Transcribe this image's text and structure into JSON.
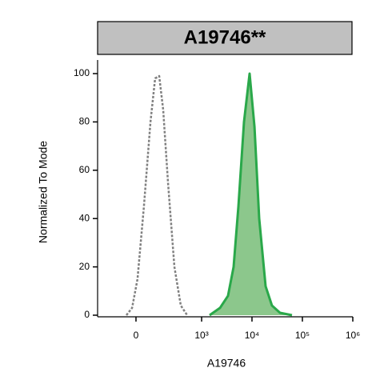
{
  "chart_data": {
    "type": "line",
    "title": "A19746**",
    "xlabel": "A19746",
    "ylabel": "Normalized To Mode",
    "xscale": "biexponential",
    "xlim": [
      -280,
      1000000
    ],
    "xticks": [
      0,
      {
        "value": 1000,
        "label": "10³"
      },
      {
        "value": 10000,
        "label": "10⁴"
      },
      {
        "value": 100000,
        "label": "10⁵"
      },
      {
        "value": 1000000,
        "label": "10⁶"
      }
    ],
    "ylim": [
      0,
      100
    ],
    "yticks": [
      0,
      20,
      40,
      60,
      80,
      100
    ],
    "series": [
      {
        "color": "#808080",
        "linestyle": "dotted",
        "x": [
          -45,
          -18,
          7,
          37,
          71,
          99,
          127,
          159,
          204,
          280,
          381,
          514
        ],
        "values": [
          0,
          3,
          15,
          45,
          80,
          98,
          99,
          85,
          55,
          20,
          4,
          0
        ]
      },
      {
        "color": "#2aa84a",
        "fill": "#8cc78c",
        "linestyle": "solid",
        "x": [
          1440,
          2320,
          3340,
          4320,
          5380,
          6950,
          8970,
          11200,
          13900,
          18600,
          24900,
          35900,
          62200
        ],
        "values": [
          0,
          3,
          8,
          20,
          45,
          80,
          100,
          78,
          40,
          12,
          4,
          1,
          0
        ]
      }
    ]
  }
}
